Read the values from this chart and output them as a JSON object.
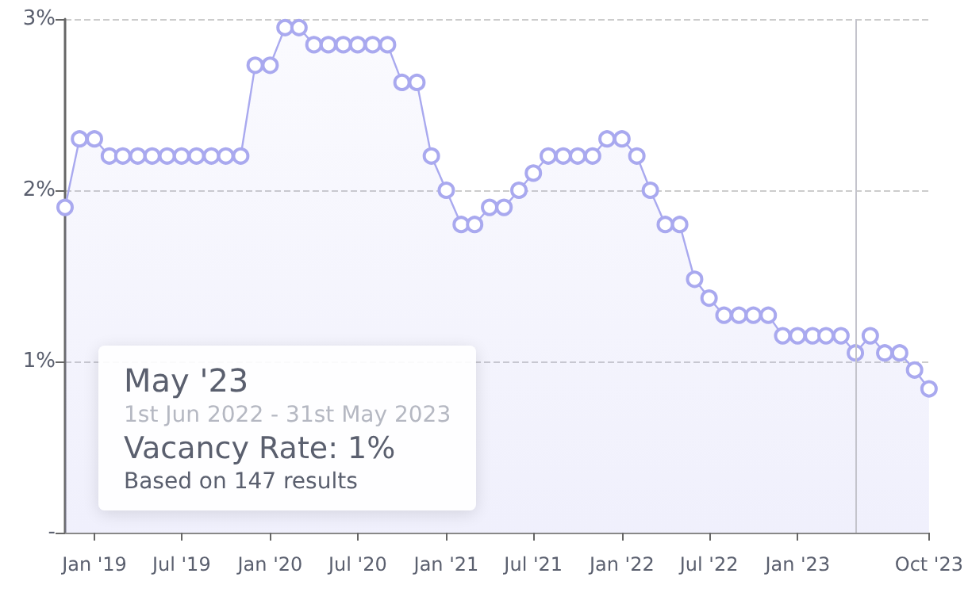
{
  "chart_data": {
    "type": "area",
    "x": [
      "2018-11",
      "2018-12",
      "2019-01",
      "2019-02",
      "2019-03",
      "2019-04",
      "2019-05",
      "2019-06",
      "2019-07",
      "2019-08",
      "2019-09",
      "2019-10",
      "2019-11",
      "2019-12",
      "2020-01",
      "2020-02",
      "2020-03",
      "2020-04",
      "2020-05",
      "2020-06",
      "2020-07",
      "2020-08",
      "2020-09",
      "2020-10",
      "2020-11",
      "2020-12",
      "2021-01",
      "2021-02",
      "2021-03",
      "2021-04",
      "2021-05",
      "2021-06",
      "2021-07",
      "2021-08",
      "2021-09",
      "2021-10",
      "2021-11",
      "2021-12",
      "2022-01",
      "2022-02",
      "2022-03",
      "2022-04",
      "2022-05",
      "2022-06",
      "2022-07",
      "2022-08",
      "2022-09",
      "2022-10",
      "2022-11",
      "2022-12",
      "2023-01",
      "2023-02",
      "2023-03",
      "2023-04",
      "2023-05",
      "2023-06",
      "2023-07",
      "2023-08",
      "2023-09",
      "2023-10"
    ],
    "series": [
      {
        "color": "#a9a9ef",
        "values": [
          1.9,
          2.3,
          2.3,
          2.2,
          2.2,
          2.2,
          2.2,
          2.2,
          2.2,
          2.2,
          2.2,
          2.2,
          2.2,
          2.73,
          2.73,
          2.95,
          2.95,
          2.85,
          2.85,
          2.85,
          2.85,
          2.85,
          2.85,
          2.63,
          2.63,
          2.2,
          2.0,
          1.8,
          1.8,
          1.9,
          1.9,
          2.0,
          2.1,
          2.2,
          2.2,
          2.2,
          2.2,
          2.3,
          2.3,
          2.2,
          2.0,
          1.8,
          1.8,
          1.48,
          1.37,
          1.27,
          1.27,
          1.27,
          1.27,
          1.15,
          1.15,
          1.15,
          1.15,
          1.15,
          1.05,
          1.15,
          1.05,
          1.05,
          0.95,
          0.84
        ]
      }
    ],
    "xlim": [
      "2018-11",
      "2023-10"
    ],
    "xticks": [
      {
        "value": "2019-01",
        "label": "Jan '19"
      },
      {
        "value": "2019-07",
        "label": "Jul '19"
      },
      {
        "value": "2020-01",
        "label": "Jan '20"
      },
      {
        "value": "2020-07",
        "label": "Jul '20"
      },
      {
        "value": "2021-01",
        "label": "Jan '21"
      },
      {
        "value": "2021-07",
        "label": "Jul '21"
      },
      {
        "value": "2022-01",
        "label": "Jan '22"
      },
      {
        "value": "2022-07",
        "label": "Jul '22"
      },
      {
        "value": "2023-01",
        "label": "Jan '23"
      },
      {
        "value": "2023-10",
        "label": "Oct '23"
      }
    ],
    "ylim": [
      0,
      3
    ],
    "yticks": [
      {
        "value": 0,
        "label": "-"
      },
      {
        "value": 1,
        "label": "1%"
      },
      {
        "value": 2,
        "label": "2%"
      },
      {
        "value": 3,
        "label": "3%"
      }
    ],
    "grid": "y",
    "marker": "circle",
    "ref_lines": [
      {
        "axis": "x",
        "value": "2023-05",
        "color": "#c4c4cc"
      }
    ],
    "annotations": [
      "May '23",
      "1st Jun 2022 - 31st May 2023",
      "Vacancy Rate: 1%",
      "Based on 147 results"
    ]
  }
}
